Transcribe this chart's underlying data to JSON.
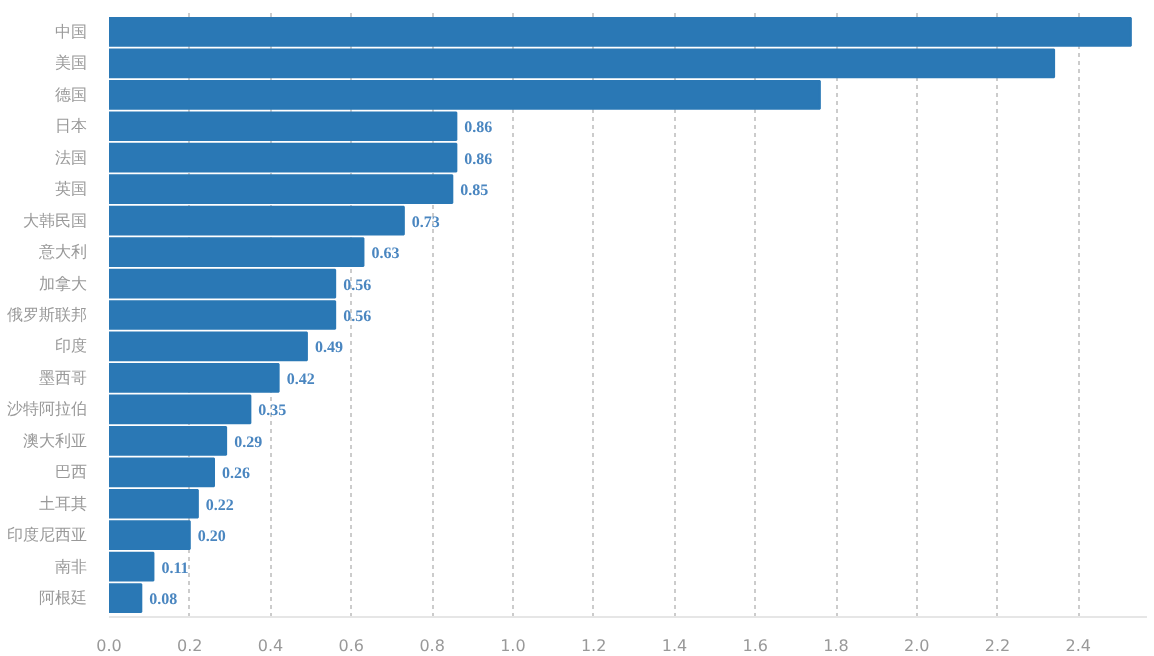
{
  "chart_data": {
    "type": "bar",
    "orientation": "horizontal",
    "categories": [
      "中国",
      "美国",
      "德国",
      "日本",
      "法国",
      "英国",
      "大韩民国",
      "意大利",
      "加拿大",
      "俄罗斯联邦",
      "印度",
      "墨西哥",
      "沙特阿拉伯",
      "澳大利亚",
      "巴西",
      "土耳其",
      "印度尼西亚",
      "南非",
      "阿根廷"
    ],
    "values": [
      2.53,
      2.34,
      1.76,
      0.86,
      0.86,
      0.85,
      0.73,
      0.63,
      0.56,
      0.56,
      0.49,
      0.42,
      0.35,
      0.29,
      0.26,
      0.22,
      0.2,
      0.11,
      0.08
    ],
    "value_labels": [
      null,
      null,
      null,
      "0.86",
      "0.86",
      "0.85",
      "0.73",
      "0.63",
      "0.56",
      "0.56",
      "0.49",
      "0.42",
      "0.35",
      "0.29",
      "0.26",
      "0.22",
      "0.20",
      "0.11",
      "0.08"
    ],
    "color": "#2a78b5",
    "xlim": [
      0,
      2.57
    ],
    "xticks": [
      {
        "value": 0,
        "label": "0.0"
      },
      {
        "value": 0.2,
        "label": "0.2"
      },
      {
        "value": 0.4,
        "label": "0.4"
      },
      {
        "value": 0.6,
        "label": "0.6"
      },
      {
        "value": 0.8,
        "label": "0.8"
      },
      {
        "value": 1.0,
        "label": "1.0"
      },
      {
        "value": 1.2,
        "label": "1.2"
      },
      {
        "value": 1.4,
        "label": "1.4"
      },
      {
        "value": 1.6,
        "label": "1.6"
      },
      {
        "value": 1.8,
        "label": "1.8"
      },
      {
        "value": 2.0,
        "label": "2.0"
      },
      {
        "value": 2.2,
        "label": "2.2"
      },
      {
        "value": 2.4,
        "label": "2.4"
      }
    ],
    "grid": "x"
  }
}
